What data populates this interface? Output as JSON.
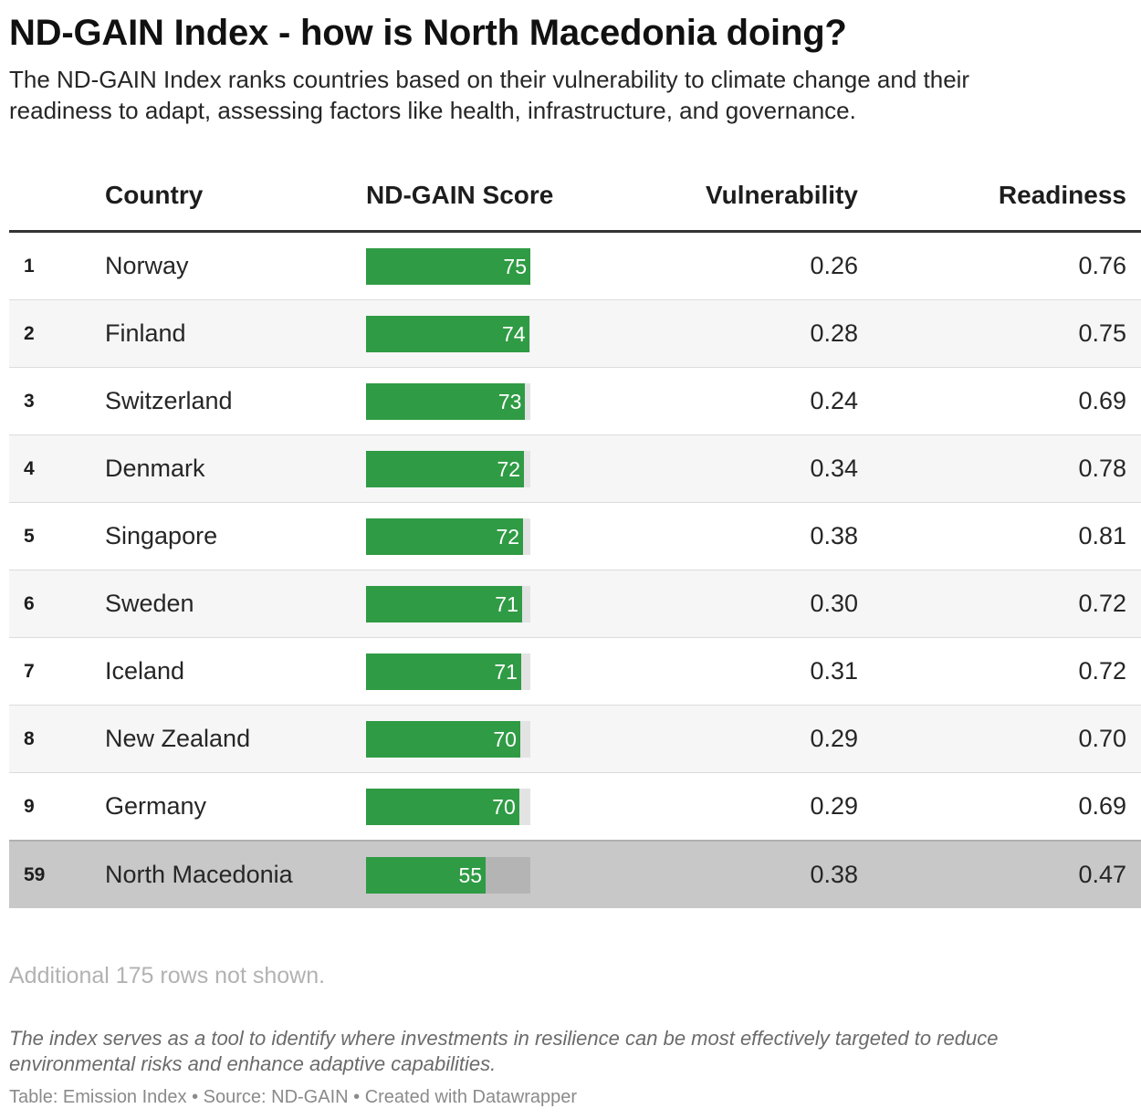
{
  "title": "ND-GAIN Index - how is North Macedonia doing?",
  "subtitle": "The ND-GAIN Index ranks countries based on their vulnerability to climate change and their readiness to adapt, assessing factors like health, infrastructure, and governance.",
  "columns": {
    "rank": "",
    "country": "Country",
    "score": "ND-GAIN Score",
    "vulnerability": "Vulnerability",
    "readiness": "Readiness"
  },
  "bar_color": "#2f9b44",
  "highlight_color": "#c8c8c8",
  "more_rows_note": "Additional 175 rows not shown.",
  "notes": "The index serves as a tool to identify where investments in resilience can be most effectively targeted to reduce environmental risks and enhance adaptive capabilities.",
  "footer": "Table: Emission Index • Source: ND-GAIN • Created with Datawrapper",
  "chart_data": {
    "type": "table",
    "score_range": [
      0,
      75
    ],
    "rows": [
      {
        "rank": "1",
        "country": "Norway",
        "score": "75",
        "score_value": 75.0,
        "vulnerability": "0.26",
        "readiness": "0.76",
        "highlight": false
      },
      {
        "rank": "2",
        "country": "Finland",
        "score": "74",
        "score_value": 74.4,
        "vulnerability": "0.28",
        "readiness": "0.75",
        "highlight": false
      },
      {
        "rank": "3",
        "country": "Switzerland",
        "score": "73",
        "score_value": 72.7,
        "vulnerability": "0.24",
        "readiness": "0.69",
        "highlight": false
      },
      {
        "rank": "4",
        "country": "Denmark",
        "score": "72",
        "score_value": 72.1,
        "vulnerability": "0.34",
        "readiness": "0.78",
        "highlight": false
      },
      {
        "rank": "5",
        "country": "Singapore",
        "score": "72",
        "score_value": 71.7,
        "vulnerability": "0.38",
        "readiness": "0.81",
        "highlight": false
      },
      {
        "rank": "6",
        "country": "Sweden",
        "score": "71",
        "score_value": 71.2,
        "vulnerability": "0.30",
        "readiness": "0.72",
        "highlight": false
      },
      {
        "rank": "7",
        "country": "Iceland",
        "score": "71",
        "score_value": 70.8,
        "vulnerability": "0.31",
        "readiness": "0.72",
        "highlight": false
      },
      {
        "rank": "8",
        "country": "New Zealand",
        "score": "70",
        "score_value": 70.4,
        "vulnerability": "0.29",
        "readiness": "0.70",
        "highlight": false
      },
      {
        "rank": "9",
        "country": "Germany",
        "score": "70",
        "score_value": 69.9,
        "vulnerability": "0.29",
        "readiness": "0.69",
        "highlight": false
      },
      {
        "rank": "59",
        "country": "North Macedonia",
        "score": "55",
        "score_value": 54.6,
        "vulnerability": "0.38",
        "readiness": "0.47",
        "highlight": true
      }
    ]
  }
}
